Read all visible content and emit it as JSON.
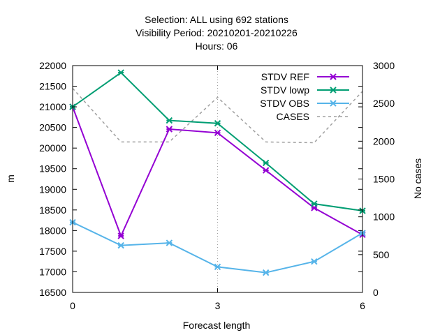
{
  "chart_data": {
    "type": "line",
    "title_lines": [
      "Selection: ALL using   692 stations",
      "Visibility   Period: 20210201-20210226",
      "Hours:  06"
    ],
    "xlabel": "Forecast length",
    "ylabel": "m",
    "y2label": "No cases",
    "x": [
      0,
      1,
      2,
      3,
      4,
      5,
      6
    ],
    "xlim": [
      0,
      6
    ],
    "xticks": [
      0,
      3,
      6
    ],
    "ylim": [
      16500,
      22000
    ],
    "yticks": [
      16500,
      17000,
      17500,
      18000,
      18500,
      19000,
      19500,
      20000,
      20500,
      21000,
      21500,
      22000
    ],
    "y2lim": [
      0,
      3000
    ],
    "y2ticks": [
      0,
      500,
      1000,
      1500,
      2000,
      2500,
      3000
    ],
    "legend_position": "top-right",
    "series": [
      {
        "name": "STDV REF",
        "axis": "y",
        "color": "#9400d3",
        "marker": true,
        "dashed": false,
        "values": [
          21000,
          17870,
          20460,
          20370,
          19460,
          18550,
          17900
        ]
      },
      {
        "name": "STDV lowp",
        "axis": "y",
        "color": "#009e73",
        "marker": true,
        "dashed": false,
        "values": [
          21000,
          21830,
          20670,
          20600,
          19640,
          18650,
          18480
        ]
      },
      {
        "name": "STDV OBS",
        "axis": "y",
        "color": "#56b4e9",
        "marker": true,
        "dashed": false,
        "values": [
          18200,
          17640,
          17700,
          17120,
          16980,
          17250,
          17940
        ]
      },
      {
        "name": "CASES",
        "axis": "y2",
        "color": "#a0a0a0",
        "marker": false,
        "dashed": true,
        "values": [
          2700,
          1990,
          1990,
          2580,
          1990,
          1980,
          2660
        ]
      }
    ]
  }
}
